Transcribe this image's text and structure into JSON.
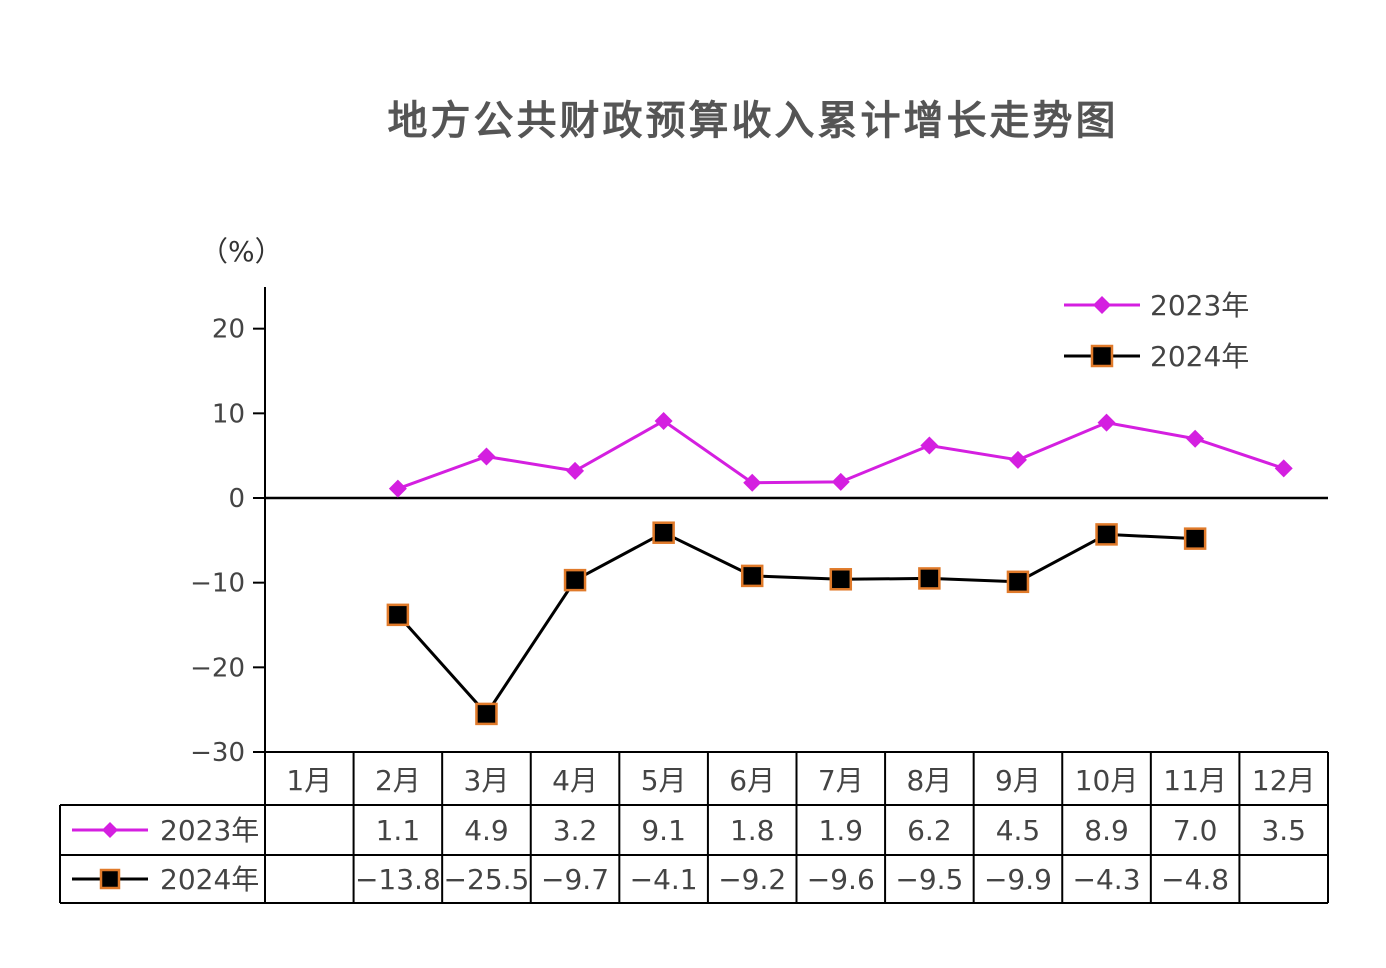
{
  "chart_data": {
    "type": "line",
    "title": "地方公共财政预算收入累计增长走势图",
    "unit_label": "（%）",
    "categories": [
      "1月",
      "2月",
      "3月",
      "4月",
      "5月",
      "6月",
      "7月",
      "8月",
      "9月",
      "10月",
      "11月",
      "12月"
    ],
    "ylim": [
      -30,
      25
    ],
    "yticks": [
      -30,
      -20,
      -10,
      0,
      10,
      20
    ],
    "ytick_labels": [
      "−30",
      "−20",
      "−10",
      "0",
      "10",
      "20"
    ],
    "legend_position": "top-right",
    "grid": false,
    "series": [
      {
        "name": "2023年",
        "color": "#d41fe0",
        "marker": "diamond",
        "values": [
          null,
          1.1,
          4.9,
          3.2,
          9.1,
          1.8,
          1.9,
          6.2,
          4.5,
          8.9,
          7.0,
          3.5
        ],
        "labels": [
          "",
          "1.1",
          "4.9",
          "3.2",
          "9.1",
          "1.8",
          "1.9",
          "6.2",
          "4.5",
          "8.9",
          "7.0",
          "3.5"
        ]
      },
      {
        "name": "2024年",
        "color": "#000000",
        "marker_edge": "#e07a2a",
        "marker": "square",
        "values": [
          null,
          -13.8,
          -25.5,
          -9.7,
          -4.1,
          -9.2,
          -9.6,
          -9.5,
          -9.9,
          -4.3,
          -4.8,
          null
        ],
        "labels": [
          "",
          "−13.8",
          "−25.5",
          "−9.7",
          "−4.1",
          "−9.2",
          "−9.6",
          "−9.5",
          "−9.9",
          "−4.3",
          "−4.8",
          ""
        ]
      }
    ]
  }
}
